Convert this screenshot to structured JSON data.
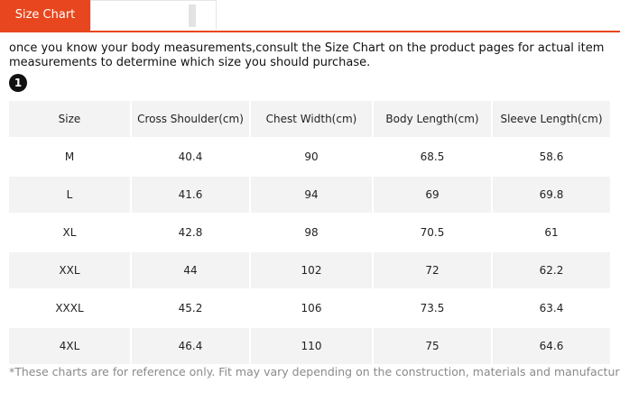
{
  "tab": {
    "label": "Size Chart"
  },
  "intro": "once you know your body measurements,consult the Size Chart on the product pages for actual item measurements to determine which size you should purchase.",
  "badge": "1",
  "table": {
    "header": [
      "Size",
      "Cross Shoulder(cm)",
      "Chest Width(cm)",
      "Body Length(cm)",
      "Sleeve Length(cm)"
    ],
    "rows": [
      [
        "M",
        "40.4",
        "90",
        "68.5",
        "58.6"
      ],
      [
        "L",
        "41.6",
        "94",
        "69",
        "69.8"
      ],
      [
        "XL",
        "42.8",
        "98",
        "70.5",
        "61"
      ],
      [
        "XXL",
        "44",
        "102",
        "72",
        "62.2"
      ],
      [
        "XXXL",
        "45.2",
        "106",
        "73.5",
        "63.4"
      ],
      [
        "4XL",
        "46.4",
        "110",
        "75",
        "64.6"
      ]
    ]
  },
  "footnote": "*These charts are for reference only. Fit may vary depending on the construction, materials and manufacturer."
}
